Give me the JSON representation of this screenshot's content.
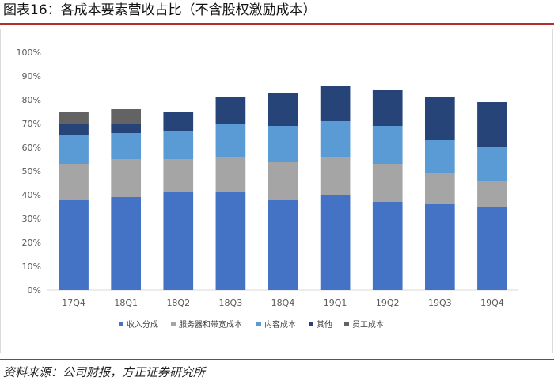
{
  "figure_label": "图表16：各成本要素营收占比（不含股权激励成本）",
  "source": "资料来源：公司财报，方正证券研究所",
  "chart_data": {
    "type": "bar",
    "stacked": true,
    "title": "",
    "xlabel": "",
    "ylabel": "",
    "ylim": [
      0,
      100
    ],
    "y_ticks": [
      "0%",
      "10%",
      "20%",
      "30%",
      "40%",
      "50%",
      "60%",
      "70%",
      "80%",
      "90%",
      "100%"
    ],
    "categories": [
      "17Q4",
      "18Q1",
      "18Q2",
      "18Q3",
      "18Q4",
      "19Q1",
      "19Q2",
      "19Q3",
      "19Q4"
    ],
    "series": [
      {
        "name": "收入分成",
        "color": "#4472C4",
        "values": [
          38,
          39,
          41,
          41,
          38,
          40,
          37,
          36,
          35
        ]
      },
      {
        "name": "服务器和带宽成本",
        "color": "#A5A5A5",
        "values": [
          15,
          16,
          14,
          15,
          16,
          16,
          16,
          13,
          11
        ]
      },
      {
        "name": "内容成本",
        "color": "#5B9BD5",
        "values": [
          12,
          11,
          12,
          14,
          15,
          15,
          16,
          14,
          14
        ]
      },
      {
        "name": "其他",
        "color": "#264478",
        "values": [
          5,
          4,
          8,
          11,
          14,
          15,
          15,
          18,
          19
        ]
      },
      {
        "name": "员工成本",
        "color": "#636363",
        "values": [
          5,
          6,
          0,
          0,
          0,
          0,
          0,
          0,
          0
        ]
      }
    ],
    "legend_position": "bottom",
    "grid": false
  }
}
